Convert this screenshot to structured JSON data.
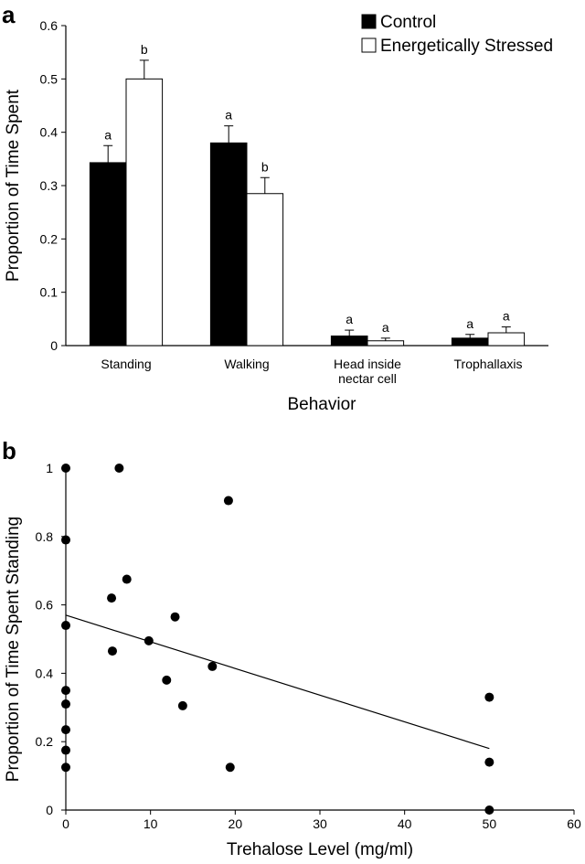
{
  "chart_data": [
    {
      "panel_label": "a",
      "type": "bar",
      "categories": [
        [
          "Standing"
        ],
        [
          "Walking"
        ],
        [
          "Head inside",
          "nectar cell"
        ],
        [
          "Trophallaxis"
        ]
      ],
      "series": [
        {
          "name": "Control",
          "color": "#000000",
          "values": [
            0.343,
            0.38,
            0.018,
            0.014
          ],
          "errors": [
            0.032,
            0.032,
            0.011,
            0.007
          ],
          "significance": [
            "a",
            "a",
            "a",
            "a"
          ]
        },
        {
          "name": "Energetically Stressed",
          "color": "#ffffff",
          "values": [
            0.5,
            0.285,
            0.009,
            0.024
          ],
          "errors": [
            0.035,
            0.03,
            0.005,
            0.011
          ],
          "significance": [
            "b",
            "b",
            "a",
            "a"
          ]
        }
      ],
      "xlabel": "Behavior",
      "ylabel": "Proportion of Time Spent",
      "ylim": [
        0,
        0.6
      ],
      "yticks": [
        "0",
        "0.1",
        "0.2",
        "0.3",
        "0.4",
        "0.5",
        "0.6"
      ],
      "legend": "top-right"
    },
    {
      "panel_label": "b",
      "type": "scatter",
      "xlabel": "Trehalose Level (mg/ml)",
      "ylabel": "Proportion of  Time Spent Standing",
      "xlim": [
        0,
        60
      ],
      "ylim": [
        0,
        1
      ],
      "xticks": [
        "0",
        "10",
        "20",
        "30",
        "40",
        "50",
        "60"
      ],
      "yticks": [
        "0",
        "0.2",
        "0.4",
        "0.6",
        "0.8",
        "1"
      ],
      "points": [
        {
          "x": 0,
          "y": 1.0
        },
        {
          "x": 0,
          "y": 0.79
        },
        {
          "x": 0,
          "y": 0.54
        },
        {
          "x": 0,
          "y": 0.35
        },
        {
          "x": 0,
          "y": 0.31
        },
        {
          "x": 0,
          "y": 0.235
        },
        {
          "x": 0,
          "y": 0.175
        },
        {
          "x": 0,
          "y": 0.125
        },
        {
          "x": 6.3,
          "y": 1.0
        },
        {
          "x": 7.2,
          "y": 0.675
        },
        {
          "x": 5.4,
          "y": 0.62
        },
        {
          "x": 5.5,
          "y": 0.465
        },
        {
          "x": 9.8,
          "y": 0.495
        },
        {
          "x": 12.9,
          "y": 0.565
        },
        {
          "x": 11.9,
          "y": 0.38
        },
        {
          "x": 13.8,
          "y": 0.305
        },
        {
          "x": 17.3,
          "y": 0.42
        },
        {
          "x": 19.2,
          "y": 0.905
        },
        {
          "x": 19.4,
          "y": 0.125
        },
        {
          "x": 50,
          "y": 0.33
        },
        {
          "x": 50,
          "y": 0.14
        },
        {
          "x": 50,
          "y": 0.0
        }
      ],
      "trendline": {
        "x": [
          0,
          50
        ],
        "y": [
          0.57,
          0.18
        ]
      }
    }
  ]
}
